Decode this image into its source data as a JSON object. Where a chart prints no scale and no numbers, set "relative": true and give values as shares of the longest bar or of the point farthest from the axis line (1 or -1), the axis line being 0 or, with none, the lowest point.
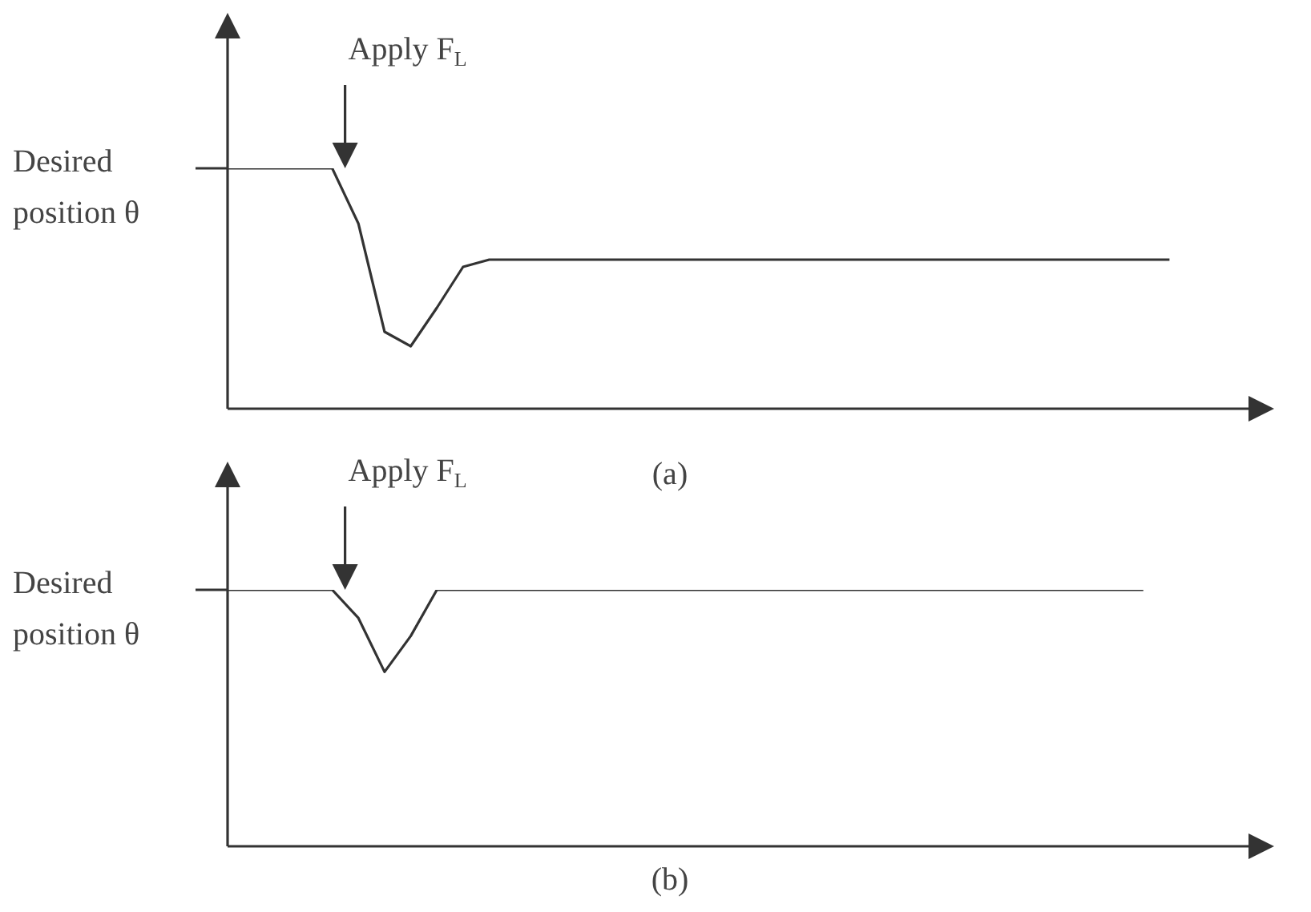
{
  "chart_data": [
    {
      "type": "line",
      "relative": true,
      "categories": [
        null,
        null,
        null,
        null,
        null,
        null,
        null,
        null,
        null,
        null,
        null,
        null,
        null,
        null,
        null,
        null,
        null,
        null,
        null,
        null,
        null,
        null,
        null,
        null,
        null,
        null,
        null,
        null,
        null,
        null,
        null,
        null,
        null,
        null,
        null,
        null,
        null,
        null,
        null,
        null,
        null
      ],
      "series": [
        {
          "color": "#333333",
          "values": [
            1,
            1,
            1,
            1,
            1,
            0.77,
            0.32,
            0.26,
            0.42,
            0.59,
            0.62,
            0.62,
            0.62,
            0.62,
            0.62,
            0.62,
            0.62,
            0.62,
            0.62,
            0.62,
            0.62,
            0.62,
            0.62,
            0.62,
            0.62,
            0.62,
            0.62,
            0.62,
            0.62,
            0.62,
            0.62,
            0.62,
            0.62,
            0.62,
            0.62,
            0.62,
            0.62,
            null,
            null,
            null,
            null
          ]
        }
      ],
      "annotations": [
        "Desired position θ",
        "Apply F$_{L}$",
        "(a)"
      ],
      "marker": "none",
      "legend": false
    },
    {
      "type": "line",
      "relative": true,
      "categories": [
        null,
        null,
        null,
        null,
        null,
        null,
        null,
        null,
        null,
        null,
        null,
        null,
        null,
        null,
        null,
        null,
        null,
        null,
        null,
        null,
        null,
        null,
        null,
        null,
        null,
        null,
        null,
        null,
        null,
        null,
        null,
        null,
        null,
        null,
        null,
        null,
        null,
        null,
        null,
        null,
        null
      ],
      "series": [
        {
          "color": "#333333",
          "values": [
            1,
            1,
            1,
            1,
            1,
            0.89,
            0.68,
            0.82,
            1,
            1,
            1,
            1,
            1,
            1,
            1,
            1,
            1,
            1,
            1,
            1,
            1,
            1,
            1,
            1,
            1,
            1,
            1,
            1,
            1,
            1,
            1,
            1,
            1,
            1,
            1,
            1,
            null,
            null,
            null,
            null,
            null
          ]
        }
      ],
      "annotations": [
        "Desired position θ",
        "Apply F$_{L}$",
        "(b)"
      ],
      "marker": "none",
      "legend": false
    }
  ]
}
